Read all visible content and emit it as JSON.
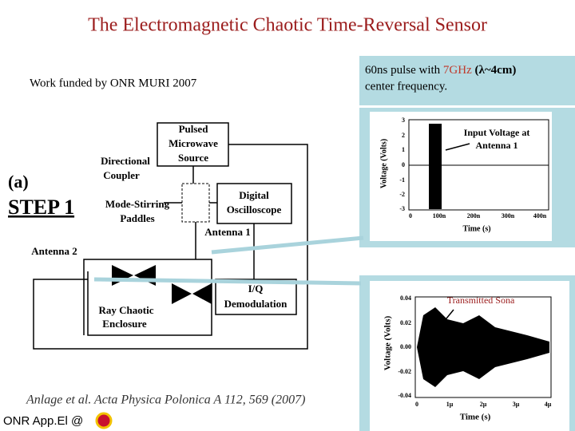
{
  "title": "The Electromagnetic Chaotic Time-Reversal Sensor",
  "funding": "Work funded by ONR MURI 2007",
  "pulse_note": {
    "before": "60ns pulse with ",
    "highlight": "7GHz",
    "middle": " (λ~4cm)",
    "after": "center frequency."
  },
  "diagram": {
    "panel": "(a)",
    "step": "STEP 1",
    "source": [
      "Pulsed",
      "Microwave",
      "Source"
    ],
    "coupler": [
      "Directional",
      "Coupler"
    ],
    "paddles": [
      "Mode-Stirring",
      "Paddles"
    ],
    "oscilloscope": [
      "Digital",
      "Oscilloscope"
    ],
    "antenna1": "Antenna 1",
    "antenna2": "Antenna 2",
    "enclosure": [
      "Ray Chaotic",
      "Enclosure"
    ],
    "demod": [
      "I/Q",
      "Demodulation"
    ]
  },
  "input_plot": {
    "annotation": [
      "Input Voltage at",
      "Antenna 1"
    ],
    "y_label": "Voltage (Volts)",
    "x_label": "Time (s)",
    "yticks": [
      "3",
      "2",
      "1",
      "0",
      "-1",
      "-2",
      "-3"
    ],
    "xticks": [
      "0",
      "100n",
      "200n",
      "300n",
      "400n"
    ]
  },
  "output_plot": {
    "annotation": "Transmitted Sona",
    "y_label": "Voltage (Volts)",
    "x_label": "Time (s)",
    "yticks": [
      "0.04",
      "0.02",
      "0.00",
      "-0.02",
      "-0.04"
    ],
    "xticks": [
      "0",
      "1μ",
      "2μ",
      "3μ",
      "4μ"
    ]
  },
  "citation": "Anlage et al. Acta Physica Polonica A 112, 569 (2007)",
  "footer": "ONR App.El @"
}
